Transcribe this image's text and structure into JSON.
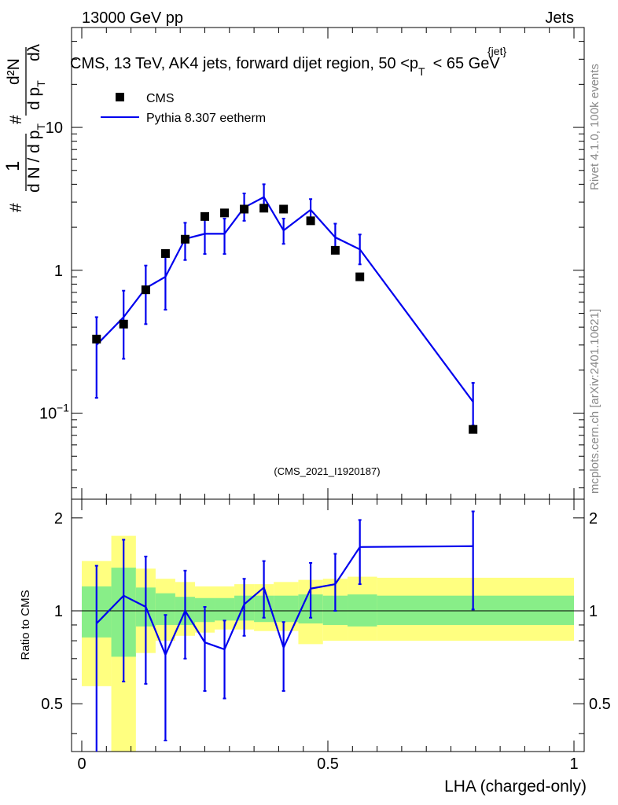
{
  "header": {
    "left": "13000 GeV pp",
    "right": "Jets",
    "title_main": "CMS, 13 TeV, AK4 jets, forward dijet region, 50 <p",
    "title_sub": "T",
    "title_sup": "{jet}",
    "title_end": "< 65 GeV"
  },
  "side_labels": {
    "rivet": "Rivet 4.1.0,  100k events",
    "mcplots": "mcplots.cern.ch [arXiv:2401.10621]"
  },
  "watermark": "(CMS_2021_I1920187)",
  "legend": {
    "data_label": "CMS",
    "mc_label": "Pythia 8.307 eetherm"
  },
  "axes": {
    "xlabel": "LHA (charged-only)",
    "ratio_ylabel": "Ratio to CMS",
    "main_ylabel": {
      "hash": "#",
      "one": "1",
      "dN": "d N / d p",
      "dN_sub": "T",
      "d2N": "d²N",
      "dpT": "d p",
      "dpT_sub": "T",
      "dlambda": "dλ"
    }
  },
  "chart_data": {
    "type": "line",
    "title": "CMS, 13 TeV, AK4 jets, forward dijet region, 50 <p_T^{jet}< 65 GeV",
    "xlabel": "LHA (charged-only)",
    "xlim": [
      0,
      1
    ],
    "main": {
      "yscale": "log",
      "ylim": [
        0.025,
        50
      ],
      "y_ticks": [
        {
          "value": 0.1,
          "label": "10",
          "sup": "−1"
        },
        {
          "value": 1,
          "label": "1",
          "sup": ""
        },
        {
          "value": 10,
          "label": "10",
          "sup": ""
        }
      ],
      "data_x": [
        0.03,
        0.085,
        0.13,
        0.17,
        0.21,
        0.25,
        0.29,
        0.33,
        0.37,
        0.41,
        0.465,
        0.515,
        0.565,
        0.795
      ],
      "series": [
        {
          "name": "CMS",
          "style": "markers",
          "values": [
            0.33,
            0.42,
            0.73,
            1.31,
            1.65,
            2.38,
            2.52,
            2.68,
            2.72,
            2.68,
            2.22,
            1.38,
            0.9,
            0.077
          ]
        },
        {
          "name": "Pythia 8.307 eetherm",
          "style": "line",
          "color": "#0000ee",
          "values": [
            0.3,
            0.47,
            0.75,
            0.9,
            1.66,
            1.8,
            1.8,
            2.75,
            3.25,
            1.9,
            2.65,
            1.7,
            1.4,
            0.12
          ],
          "err_low": [
            0.128,
            0.24,
            0.42,
            0.53,
            1.18,
            1.3,
            1.3,
            2.22,
            2.58,
            1.53,
            2.25,
            1.4,
            1.1,
            0.082
          ],
          "err_high": [
            0.47,
            0.72,
            1.08,
            1.26,
            2.15,
            2.3,
            2.3,
            3.45,
            4.0,
            2.3,
            3.15,
            2.12,
            1.78,
            0.163
          ]
        }
      ]
    },
    "ratio": {
      "ylim": [
        0.35,
        2.3
      ],
      "y_ticks": [
        0.5,
        1,
        2
      ],
      "reference": 1,
      "band_edges": [
        0,
        0.06,
        0.11,
        0.15,
        0.19,
        0.23,
        0.27,
        0.31,
        0.35,
        0.39,
        0.44,
        0.49,
        0.54,
        0.6,
        1.0
      ],
      "band_green_low": [
        0.82,
        0.71,
        0.89,
        0.9,
        0.9,
        0.92,
        0.93,
        0.93,
        0.92,
        0.92,
        0.91,
        0.9,
        0.89,
        0.9
      ],
      "band_green_high": [
        1.2,
        1.38,
        1.19,
        1.14,
        1.11,
        1.1,
        1.1,
        1.12,
        1.12,
        1.12,
        1.13,
        1.12,
        1.13,
        1.12
      ],
      "band_yellow_low": [
        0.57,
        0.3,
        0.73,
        0.8,
        0.83,
        0.85,
        0.87,
        0.87,
        0.86,
        0.86,
        0.78,
        0.8,
        0.8,
        0.8
      ],
      "band_yellow_high": [
        1.45,
        1.75,
        1.37,
        1.27,
        1.24,
        1.2,
        1.2,
        1.22,
        1.22,
        1.24,
        1.26,
        1.27,
        1.29,
        1.28
      ],
      "mc_values": [
        0.91,
        1.12,
        1.03,
        0.72,
        1.0,
        0.79,
        0.75,
        1.05,
        1.19,
        0.76,
        1.18,
        1.22,
        1.61,
        1.62
      ],
      "mc_err_low": [
        0.32,
        0.59,
        0.58,
        0.38,
        0.7,
        0.55,
        0.52,
        0.83,
        0.95,
        0.55,
        0.95,
        1.0,
        1.22,
        1.01
      ],
      "mc_err_high": [
        1.4,
        1.7,
        1.5,
        0.97,
        1.35,
        1.03,
        0.93,
        1.27,
        1.45,
        0.92,
        1.43,
        1.53,
        1.97,
        2.1
      ]
    }
  }
}
